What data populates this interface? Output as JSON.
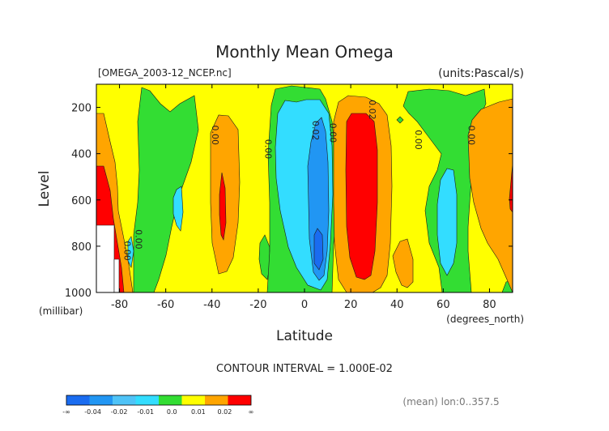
{
  "chart_data": {
    "type": "heatmap",
    "title": "Monthly Mean Omega",
    "file_label": "[OMEGA_2003-12_NCEP.nc]",
    "units_label": "(units:Pascal/s)",
    "ylabel": "Level",
    "ylabel_units": "(millibar)",
    "xlabel": "Latitude",
    "xlabel_units": "(degrees_north)",
    "xlim": [
      -90,
      90
    ],
    "ylim": [
      1000,
      100
    ],
    "x_ticks": [
      -80,
      -60,
      -40,
      -20,
      0,
      20,
      40,
      60,
      80
    ],
    "x_tick_labels": [
      "-80",
      "-60",
      "-40",
      "-20",
      "0",
      "20",
      "40",
      "60",
      "80"
    ],
    "y_ticks": [
      200,
      400,
      600,
      800,
      1000
    ],
    "y_tick_labels": [
      "200",
      "400",
      "600",
      "800",
      "1000"
    ],
    "contour_interval_text": "CONTOUR INTERVAL = 1.000E-02",
    "footer_note": "(mean) lon:0..357.5",
    "contour_labels": [
      {
        "text": "0.00",
        "lat": -40,
        "lev": 320
      },
      {
        "text": "0.00",
        "lat": -17,
        "lev": 380
      },
      {
        "text": "0.02",
        "lat": 3.5,
        "lev": 300
      },
      {
        "text": "0.00",
        "lat": 11,
        "lev": 310
      },
      {
        "text": "0.02",
        "lat": 28,
        "lev": 210
      },
      {
        "text": "0.00",
        "lat": 48,
        "lev": 340
      },
      {
        "text": "0.00",
        "lat": 71,
        "lev": 320
      },
      {
        "text": "0.00",
        "lat": -73,
        "lev": 770
      },
      {
        "text": "0.00",
        "lat": -78,
        "lev": 820
      }
    ],
    "colorbar": {
      "colors": [
        "#1a6cf0",
        "#2196f3",
        "#4fc3f7",
        "#33ddff",
        "#33dd33",
        "#ffff00",
        "#ffa500",
        "#ff0000"
      ],
      "labels": [
        "-∞",
        "-0.04",
        "-0.02",
        "-0.01",
        "0.0",
        "0.01",
        "0.02",
        "∞"
      ]
    },
    "grid": false
  },
  "colors": {
    "yellow": "#ffff00",
    "green": "#33dd33",
    "cyan": "#33ddff",
    "blue": "#2196f3",
    "dark_blue": "#1a6cf0",
    "orange": "#ffa500",
    "red": "#ff0000"
  }
}
